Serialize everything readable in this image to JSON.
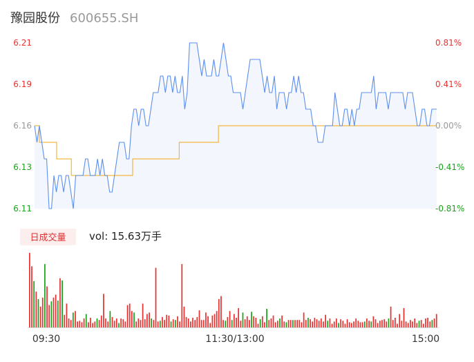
{
  "header": {
    "stock_name": "豫园股份",
    "stock_code": "600655.SH"
  },
  "volume_panel": {
    "badge": "日成交量",
    "vol_text": "vol: 15.63万手"
  },
  "colors": {
    "price_line": "#5b8ff0",
    "avg_line": "#f2b640",
    "up": "#e8312f",
    "down": "#1aa31a",
    "flat": "#999999",
    "area_fill": "#f3f6fc"
  },
  "chart_data": [
    {
      "type": "line",
      "title": "",
      "prev_close": 6.16,
      "ylim": [
        6.11,
        6.21
      ],
      "y_ticks_left": [
        "6.21",
        "6.19",
        "6.16",
        "6.13",
        "6.11"
      ],
      "y_ticks_right": [
        "0.81%",
        "0.41%",
        "0.00%",
        "-0.41%",
        "-0.81%"
      ],
      "x_ticks": [
        "09:30",
        "11:30/13:00",
        "15:00"
      ],
      "series": [
        {
          "role": "price",
          "values": [
            6.16,
            6.15,
            6.16,
            6.15,
            6.14,
            6.14,
            6.11,
            6.11,
            6.13,
            6.12,
            6.13,
            6.13,
            6.12,
            6.13,
            6.13,
            6.12,
            6.11,
            6.13,
            6.13,
            6.13,
            6.13,
            6.14,
            6.14,
            6.13,
            6.13,
            6.13,
            6.14,
            6.13,
            6.14,
            6.13,
            6.13,
            6.12,
            6.12,
            6.13,
            6.14,
            6.15,
            6.15,
            6.15,
            6.14,
            6.14,
            6.16,
            6.17,
            6.17,
            6.16,
            6.17,
            6.17,
            6.16,
            6.16,
            6.17,
            6.18,
            6.18,
            6.18,
            6.19,
            6.19,
            6.18,
            6.19,
            6.19,
            6.18,
            6.19,
            6.18,
            6.18,
            6.19,
            6.17,
            6.18,
            6.21,
            6.21,
            6.21,
            6.21,
            6.2,
            6.19,
            6.2,
            6.19,
            6.19,
            6.19,
            6.2,
            6.19,
            6.19,
            6.2,
            6.21,
            6.2,
            6.19,
            6.19,
            6.18,
            6.18,
            6.18,
            6.18,
            6.17,
            6.18,
            6.19,
            6.2,
            6.2,
            6.2,
            6.2,
            6.2,
            6.19,
            6.18,
            6.19,
            6.18,
            6.18,
            6.19,
            6.17,
            6.18,
            6.18,
            6.18,
            6.17,
            6.18,
            6.18,
            6.19,
            6.18,
            6.19,
            6.18,
            6.18,
            6.17,
            6.17,
            6.17,
            6.16,
            6.16,
            6.15,
            6.15,
            6.15,
            6.16,
            6.16,
            6.16,
            6.16,
            6.18,
            6.17,
            6.16,
            6.16,
            6.17,
            6.17,
            6.16,
            6.17,
            6.16,
            6.17,
            6.17,
            6.18,
            6.18,
            6.18,
            6.18,
            6.18,
            6.19,
            6.17,
            6.18,
            6.18,
            6.18,
            6.18,
            6.17,
            6.18,
            6.18,
            6.18,
            6.18,
            6.18,
            6.18,
            6.17,
            6.18,
            6.18,
            6.18,
            6.17,
            6.16,
            6.16,
            6.17,
            6.17,
            6.16,
            6.16,
            6.17,
            6.17,
            6.17
          ],
          "x_start": "09:30",
          "x_end": "15:00"
        },
        {
          "role": "average",
          "values": [
            6.16,
            6.16,
            6.15,
            6.15,
            6.15,
            6.15,
            6.15,
            6.15,
            6.15,
            6.14,
            6.14,
            6.14,
            6.14,
            6.14,
            6.14,
            6.13,
            6.13,
            6.13,
            6.13,
            6.13,
            6.13,
            6.13,
            6.13,
            6.13,
            6.13,
            6.13,
            6.13,
            6.13,
            6.13,
            6.13,
            6.13,
            6.13,
            6.13,
            6.13,
            6.13,
            6.13,
            6.13,
            6.13,
            6.13,
            6.13,
            6.14,
            6.14,
            6.14,
            6.14,
            6.14,
            6.14,
            6.14,
            6.14,
            6.14,
            6.14,
            6.14,
            6.14,
            6.14,
            6.14,
            6.14,
            6.14,
            6.14,
            6.14,
            6.14,
            6.15,
            6.15,
            6.15,
            6.15,
            6.15,
            6.15,
            6.15,
            6.15,
            6.15,
            6.15,
            6.15,
            6.15,
            6.15,
            6.15,
            6.15,
            6.15,
            6.16,
            6.16,
            6.16,
            6.16,
            6.16,
            6.16,
            6.16,
            6.16,
            6.16,
            6.16,
            6.16,
            6.16,
            6.16,
            6.16,
            6.16,
            6.16,
            6.16,
            6.16,
            6.16,
            6.16,
            6.16,
            6.16,
            6.16,
            6.16,
            6.16,
            6.16,
            6.16,
            6.16,
            6.16,
            6.16,
            6.16,
            6.16,
            6.16,
            6.16,
            6.16,
            6.16,
            6.16,
            6.16,
            6.16,
            6.16,
            6.16,
            6.16,
            6.16,
            6.16,
            6.16,
            6.16,
            6.16,
            6.16,
            6.16,
            6.16,
            6.16,
            6.16,
            6.16,
            6.16,
            6.16,
            6.16,
            6.16,
            6.16,
            6.16,
            6.16,
            6.16,
            6.16,
            6.16,
            6.16,
            6.16,
            6.16,
            6.16,
            6.16,
            6.16,
            6.16,
            6.16,
            6.16,
            6.16,
            6.16,
            6.16,
            6.16,
            6.16,
            6.16,
            6.16,
            6.16,
            6.16,
            6.16,
            6.16,
            6.16,
            6.16,
            6.16,
            6.16,
            6.16,
            6.16,
            6.16
          ]
        }
      ]
    },
    {
      "type": "bar",
      "title": "",
      "note": "volume per interval (relative units), color indicates up/down",
      "values": [
        100,
        82,
        62,
        48,
        38,
        28,
        40,
        85,
        55,
        30,
        35,
        40,
        44,
        36,
        66,
        63,
        17,
        32,
        12,
        10,
        20,
        22,
        8,
        9,
        7,
        12,
        18,
        7,
        13,
        6,
        8,
        12,
        10,
        16,
        45,
        12,
        8,
        22,
        14,
        9,
        12,
        6,
        12,
        11,
        8,
        30,
        32,
        22,
        20,
        8,
        12,
        10,
        32,
        11,
        18,
        20,
        12,
        10,
        80,
        8,
        9,
        14,
        10,
        17,
        16,
        8,
        11,
        10,
        15,
        8,
        85,
        28,
        14,
        12,
        8,
        13,
        10,
        14,
        23,
        10,
        10,
        20,
        15,
        6,
        16,
        18,
        22,
        38,
        42,
        10,
        9,
        14,
        22,
        10,
        18,
        13,
        26,
        9,
        20,
        11,
        15,
        10,
        21,
        15,
        13,
        5,
        11,
        15,
        7,
        25,
        10,
        12,
        16,
        7,
        9,
        12,
        16,
        8,
        7,
        10,
        10,
        10,
        10,
        10,
        10,
        7,
        20,
        10,
        13,
        11,
        8,
        13,
        11,
        9,
        12,
        8,
        17,
        9,
        12,
        5,
        8,
        12,
        6,
        11,
        9,
        5,
        11,
        7,
        6,
        8,
        12,
        9,
        7,
        7,
        8,
        12,
        9,
        8,
        15,
        11,
        6,
        9,
        10,
        11,
        8,
        12,
        28,
        10,
        13,
        5,
        18,
        9,
        26,
        8,
        6,
        10,
        8,
        12,
        6,
        9,
        10,
        5,
        12,
        13,
        8,
        10,
        12,
        18
      ],
      "colors": [
        "up",
        "up",
        "down",
        "up",
        "down",
        "up",
        "up",
        "down",
        "up",
        "up",
        "down",
        "up",
        "up",
        "down",
        "up",
        "down",
        "up",
        "up",
        "up",
        "up",
        "down",
        "up",
        "up",
        "up",
        "up",
        "up",
        "down",
        "up",
        "up",
        "up",
        "up",
        "down",
        "up",
        "up",
        "up",
        "up",
        "up",
        "down",
        "up",
        "up",
        "up",
        "down",
        "up",
        "up",
        "up",
        "up",
        "up",
        "up",
        "down",
        "up",
        "up",
        "up",
        "up",
        "up",
        "up",
        "up",
        "down",
        "up",
        "up",
        "up",
        "down",
        "up",
        "up",
        "up",
        "up",
        "down",
        "up",
        "down",
        "up",
        "up",
        "up",
        "up",
        "up",
        "up",
        "up",
        "up",
        "up",
        "up",
        "up",
        "up",
        "up",
        "up",
        "up",
        "up",
        "up",
        "up",
        "up",
        "up",
        "up",
        "up",
        "down",
        "up",
        "up",
        "down",
        "up",
        "up",
        "up",
        "up",
        "down",
        "up",
        "up",
        "up",
        "down",
        "up",
        "up",
        "up",
        "down",
        "up",
        "up",
        "down",
        "up",
        "up",
        "up",
        "up",
        "up",
        "down",
        "up",
        "up",
        "down",
        "up",
        "up",
        "down",
        "up",
        "up",
        "up",
        "up",
        "up",
        "up",
        "down",
        "up",
        "up",
        "up",
        "up",
        "up",
        "up",
        "up",
        "up",
        "down",
        "up",
        "up",
        "up",
        "up",
        "down",
        "up",
        "up",
        "up",
        "up",
        "up",
        "up",
        "up",
        "up",
        "up",
        "up",
        "up",
        "down",
        "up",
        "up",
        "down",
        "up",
        "up",
        "up",
        "up",
        "up",
        "up",
        "up",
        "down",
        "up",
        "up",
        "up",
        "up",
        "up",
        "up",
        "up",
        "up",
        "up",
        "up",
        "up",
        "up",
        "up",
        "down",
        "up",
        "up",
        "up",
        "up",
        "up",
        "down",
        "up",
        "up",
        "up",
        "down",
        "down"
      ]
    }
  ]
}
